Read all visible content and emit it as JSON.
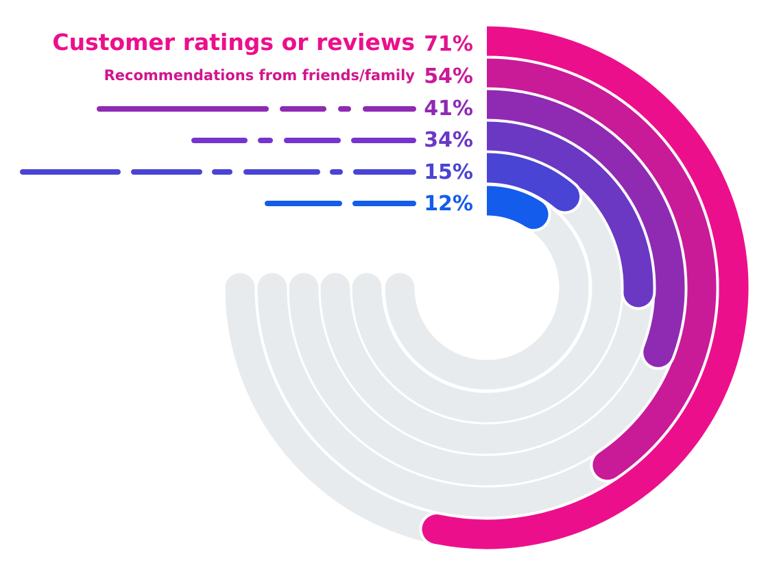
{
  "chart_data": {
    "type": "radial-bar",
    "max_value": 100,
    "track_color": "#E8EBEE",
    "series": [
      {
        "label": "Customer ratings or reviews",
        "value": 71,
        "value_label": "71%",
        "color": "#EC0F8C"
      },
      {
        "label": "Recommendations from friends/family",
        "value": 54,
        "value_label": "54%",
        "color": "#C91A98"
      },
      {
        "label": "",
        "value": 41,
        "value_label": "41%",
        "color": "#8F2AB3"
      },
      {
        "label": "",
        "value": 34,
        "value_label": "34%",
        "color": "#6B38C4"
      },
      {
        "label": "",
        "value": 15,
        "value_label": "15%",
        "color": "#4A44D4"
      },
      {
        "label": "",
        "value": 12,
        "value_label": "12%",
        "color": "#135CEC"
      }
    ]
  }
}
